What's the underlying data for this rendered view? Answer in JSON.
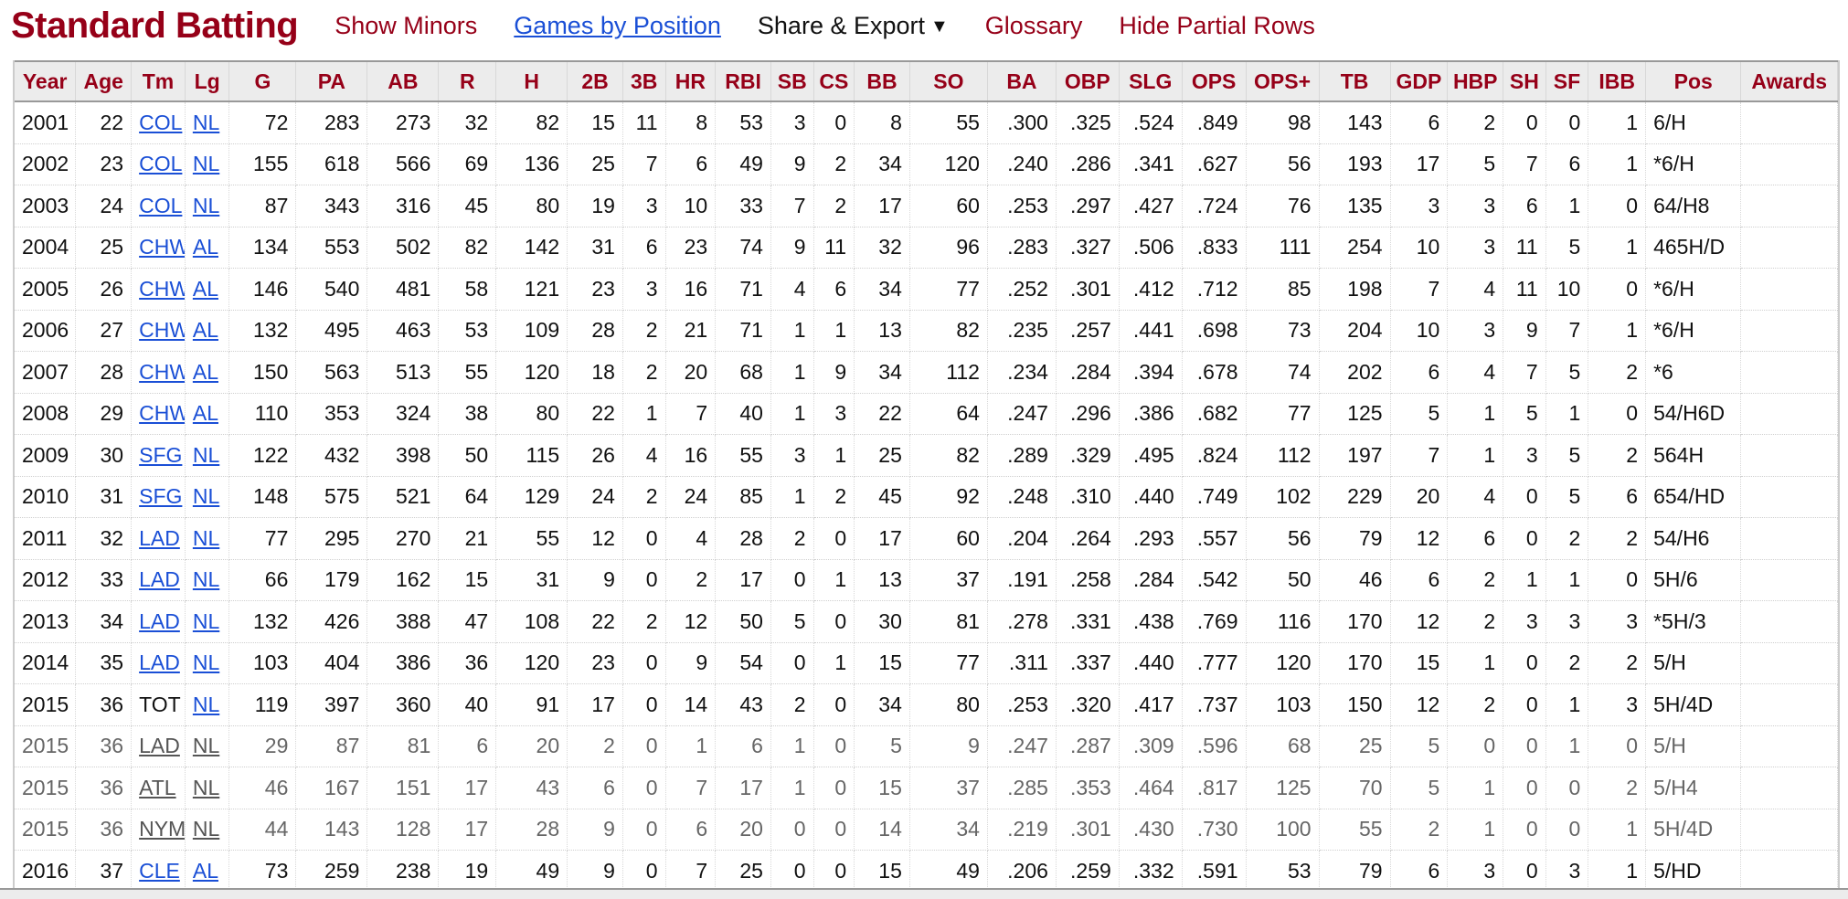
{
  "header": {
    "title": "Standard Batting",
    "links": {
      "show_minors": "Show Minors",
      "games_by_position": "Games by Position",
      "share_export": "Share & Export",
      "share_export_caret": "▼",
      "glossary": "Glossary",
      "hide_partial_rows": "Hide Partial Rows"
    }
  },
  "colors": {
    "title_red": "#960018",
    "link_blue": "#1a4fd6",
    "header_bg": "#ececec"
  },
  "table": {
    "columns": [
      "Year",
      "Age",
      "Tm",
      "Lg",
      "G",
      "PA",
      "AB",
      "R",
      "H",
      "2B",
      "3B",
      "HR",
      "RBI",
      "SB",
      "CS",
      "BB",
      "SO",
      "BA",
      "OBP",
      "SLG",
      "OPS",
      "OPS+",
      "TB",
      "GDP",
      "HBP",
      "SH",
      "SF",
      "IBB",
      "Pos",
      "Awards"
    ],
    "rows": [
      {
        "year": "2001",
        "age": "22",
        "tm": "COL",
        "lg": "NL",
        "g": "72",
        "pa": "283",
        "ab": "273",
        "r": "32",
        "h": "82",
        "b2": "15",
        "b3": "11",
        "hr": "8",
        "rbi": "53",
        "sb": "3",
        "cs": "0",
        "bb": "8",
        "so": "55",
        "ba": ".300",
        "obp": ".325",
        "slg": ".524",
        "ops": ".849",
        "opsplus": "98",
        "tb": "143",
        "gdp": "6",
        "hbp": "2",
        "sh": "0",
        "sf": "0",
        "ibb": "1",
        "pos": "6/H",
        "awards": ""
      },
      {
        "year": "2002",
        "age": "23",
        "tm": "COL",
        "lg": "NL",
        "g": "155",
        "pa": "618",
        "ab": "566",
        "r": "69",
        "h": "136",
        "b2": "25",
        "b3": "7",
        "hr": "6",
        "rbi": "49",
        "sb": "9",
        "cs": "2",
        "bb": "34",
        "so": "120",
        "ba": ".240",
        "obp": ".286",
        "slg": ".341",
        "ops": ".627",
        "opsplus": "56",
        "tb": "193",
        "gdp": "17",
        "hbp": "5",
        "sh": "7",
        "sf": "6",
        "ibb": "1",
        "pos": "*6/H",
        "awards": ""
      },
      {
        "year": "2003",
        "age": "24",
        "tm": "COL",
        "lg": "NL",
        "g": "87",
        "pa": "343",
        "ab": "316",
        "r": "45",
        "h": "80",
        "b2": "19",
        "b3": "3",
        "hr": "10",
        "rbi": "33",
        "sb": "7",
        "cs": "2",
        "bb": "17",
        "so": "60",
        "ba": ".253",
        "obp": ".297",
        "slg": ".427",
        "ops": ".724",
        "opsplus": "76",
        "tb": "135",
        "gdp": "3",
        "hbp": "3",
        "sh": "6",
        "sf": "1",
        "ibb": "0",
        "pos": "64/H8",
        "awards": ""
      },
      {
        "year": "2004",
        "age": "25",
        "tm": "CHW",
        "lg": "AL",
        "g": "134",
        "pa": "553",
        "ab": "502",
        "r": "82",
        "h": "142",
        "b2": "31",
        "b3": "6",
        "hr": "23",
        "rbi": "74",
        "sb": "9",
        "cs": "11",
        "bb": "32",
        "so": "96",
        "ba": ".283",
        "obp": ".327",
        "slg": ".506",
        "ops": ".833",
        "opsplus": "111",
        "tb": "254",
        "gdp": "10",
        "hbp": "3",
        "sh": "11",
        "sf": "5",
        "ibb": "1",
        "pos": "465H/D",
        "awards": ""
      },
      {
        "year": "2005",
        "age": "26",
        "tm": "CHW",
        "lg": "AL",
        "g": "146",
        "pa": "540",
        "ab": "481",
        "r": "58",
        "h": "121",
        "b2": "23",
        "b3": "3",
        "hr": "16",
        "rbi": "71",
        "sb": "4",
        "cs": "6",
        "bb": "34",
        "so": "77",
        "ba": ".252",
        "obp": ".301",
        "slg": ".412",
        "ops": ".712",
        "opsplus": "85",
        "tb": "198",
        "gdp": "7",
        "hbp": "4",
        "sh": "11",
        "sf": "10",
        "ibb": "0",
        "pos": "*6/H",
        "awards": ""
      },
      {
        "year": "2006",
        "age": "27",
        "tm": "CHW",
        "lg": "AL",
        "g": "132",
        "pa": "495",
        "ab": "463",
        "r": "53",
        "h": "109",
        "b2": "28",
        "b3": "2",
        "hr": "21",
        "rbi": "71",
        "sb": "1",
        "cs": "1",
        "bb": "13",
        "so": "82",
        "ba": ".235",
        "obp": ".257",
        "slg": ".441",
        "ops": ".698",
        "opsplus": "73",
        "tb": "204",
        "gdp": "10",
        "hbp": "3",
        "sh": "9",
        "sf": "7",
        "ibb": "1",
        "pos": "*6/H",
        "awards": ""
      },
      {
        "year": "2007",
        "age": "28",
        "tm": "CHW",
        "lg": "AL",
        "g": "150",
        "pa": "563",
        "ab": "513",
        "r": "55",
        "h": "120",
        "b2": "18",
        "b3": "2",
        "hr": "20",
        "rbi": "68",
        "sb": "1",
        "cs": "9",
        "bb": "34",
        "so": "112",
        "ba": ".234",
        "obp": ".284",
        "slg": ".394",
        "ops": ".678",
        "opsplus": "74",
        "tb": "202",
        "gdp": "6",
        "hbp": "4",
        "sh": "7",
        "sf": "5",
        "ibb": "2",
        "pos": "*6",
        "awards": ""
      },
      {
        "year": "2008",
        "age": "29",
        "tm": "CHW",
        "lg": "AL",
        "g": "110",
        "pa": "353",
        "ab": "324",
        "r": "38",
        "h": "80",
        "b2": "22",
        "b3": "1",
        "hr": "7",
        "rbi": "40",
        "sb": "1",
        "cs": "3",
        "bb": "22",
        "so": "64",
        "ba": ".247",
        "obp": ".296",
        "slg": ".386",
        "ops": ".682",
        "opsplus": "77",
        "tb": "125",
        "gdp": "5",
        "hbp": "1",
        "sh": "5",
        "sf": "1",
        "ibb": "0",
        "pos": "54/H6D",
        "awards": ""
      },
      {
        "year": "2009",
        "age": "30",
        "tm": "SFG",
        "lg": "NL",
        "g": "122",
        "pa": "432",
        "ab": "398",
        "r": "50",
        "h": "115",
        "b2": "26",
        "b3": "4",
        "hr": "16",
        "rbi": "55",
        "sb": "3",
        "cs": "1",
        "bb": "25",
        "so": "82",
        "ba": ".289",
        "obp": ".329",
        "slg": ".495",
        "ops": ".824",
        "opsplus": "112",
        "tb": "197",
        "gdp": "7",
        "hbp": "1",
        "sh": "3",
        "sf": "5",
        "ibb": "2",
        "pos": "564H",
        "awards": ""
      },
      {
        "year": "2010",
        "age": "31",
        "tm": "SFG",
        "lg": "NL",
        "g": "148",
        "pa": "575",
        "ab": "521",
        "r": "64",
        "h": "129",
        "b2": "24",
        "b3": "2",
        "hr": "24",
        "rbi": "85",
        "sb": "1",
        "cs": "2",
        "bb": "45",
        "so": "92",
        "ba": ".248",
        "obp": ".310",
        "slg": ".440",
        "ops": ".749",
        "opsplus": "102",
        "tb": "229",
        "gdp": "20",
        "hbp": "4",
        "sh": "0",
        "sf": "5",
        "ibb": "6",
        "pos": "654/HD",
        "awards": ""
      },
      {
        "year": "2011",
        "age": "32",
        "tm": "LAD",
        "lg": "NL",
        "g": "77",
        "pa": "295",
        "ab": "270",
        "r": "21",
        "h": "55",
        "b2": "12",
        "b3": "0",
        "hr": "4",
        "rbi": "28",
        "sb": "2",
        "cs": "0",
        "bb": "17",
        "so": "60",
        "ba": ".204",
        "obp": ".264",
        "slg": ".293",
        "ops": ".557",
        "opsplus": "56",
        "tb": "79",
        "gdp": "12",
        "hbp": "6",
        "sh": "0",
        "sf": "2",
        "ibb": "2",
        "pos": "54/H6",
        "awards": ""
      },
      {
        "year": "2012",
        "age": "33",
        "tm": "LAD",
        "lg": "NL",
        "g": "66",
        "pa": "179",
        "ab": "162",
        "r": "15",
        "h": "31",
        "b2": "9",
        "b3": "0",
        "hr": "2",
        "rbi": "17",
        "sb": "0",
        "cs": "1",
        "bb": "13",
        "so": "37",
        "ba": ".191",
        "obp": ".258",
        "slg": ".284",
        "ops": ".542",
        "opsplus": "50",
        "tb": "46",
        "gdp": "6",
        "hbp": "2",
        "sh": "1",
        "sf": "1",
        "ibb": "0",
        "pos": "5H/6",
        "awards": ""
      },
      {
        "year": "2013",
        "age": "34",
        "tm": "LAD",
        "lg": "NL",
        "g": "132",
        "pa": "426",
        "ab": "388",
        "r": "47",
        "h": "108",
        "b2": "22",
        "b3": "2",
        "hr": "12",
        "rbi": "50",
        "sb": "5",
        "cs": "0",
        "bb": "30",
        "so": "81",
        "ba": ".278",
        "obp": ".331",
        "slg": ".438",
        "ops": ".769",
        "opsplus": "116",
        "tb": "170",
        "gdp": "12",
        "hbp": "2",
        "sh": "3",
        "sf": "3",
        "ibb": "3",
        "pos": "*5H/3",
        "awards": ""
      },
      {
        "year": "2014",
        "age": "35",
        "tm": "LAD",
        "lg": "NL",
        "g": "103",
        "pa": "404",
        "ab": "386",
        "r": "36",
        "h": "120",
        "b2": "23",
        "b3": "0",
        "hr": "9",
        "rbi": "54",
        "sb": "0",
        "cs": "1",
        "bb": "15",
        "so": "77",
        "ba": ".311",
        "obp": ".337",
        "slg": ".440",
        "ops": ".777",
        "opsplus": "120",
        "tb": "170",
        "gdp": "15",
        "hbp": "1",
        "sh": "0",
        "sf": "2",
        "ibb": "2",
        "pos": "5/H",
        "awards": ""
      },
      {
        "year": "2015",
        "age": "36",
        "tm": "TOT",
        "lg": "NL",
        "g": "119",
        "pa": "397",
        "ab": "360",
        "r": "40",
        "h": "91",
        "b2": "17",
        "b3": "0",
        "hr": "14",
        "rbi": "43",
        "sb": "2",
        "cs": "0",
        "bb": "34",
        "so": "80",
        "ba": ".253",
        "obp": ".320",
        "slg": ".417",
        "ops": ".737",
        "opsplus": "103",
        "tb": "150",
        "gdp": "12",
        "hbp": "2",
        "sh": "0",
        "sf": "1",
        "ibb": "3",
        "pos": "5H/4D",
        "awards": ""
      },
      {
        "year": "2015",
        "age": "36",
        "tm": "LAD",
        "lg": "NL",
        "g": "29",
        "pa": "87",
        "ab": "81",
        "r": "6",
        "h": "20",
        "b2": "2",
        "b3": "0",
        "hr": "1",
        "rbi": "6",
        "sb": "1",
        "cs": "0",
        "bb": "5",
        "so": "9",
        "ba": ".247",
        "obp": ".287",
        "slg": ".309",
        "ops": ".596",
        "opsplus": "68",
        "tb": "25",
        "gdp": "5",
        "hbp": "0",
        "sh": "0",
        "sf": "1",
        "ibb": "0",
        "pos": "5/H",
        "awards": ""
      },
      {
        "year": "2015",
        "age": "36",
        "tm": "ATL",
        "lg": "NL",
        "g": "46",
        "pa": "167",
        "ab": "151",
        "r": "17",
        "h": "43",
        "b2": "6",
        "b3": "0",
        "hr": "7",
        "rbi": "17",
        "sb": "1",
        "cs": "0",
        "bb": "15",
        "so": "37",
        "ba": ".285",
        "obp": ".353",
        "slg": ".464",
        "ops": ".817",
        "opsplus": "125",
        "tb": "70",
        "gdp": "5",
        "hbp": "1",
        "sh": "0",
        "sf": "0",
        "ibb": "2",
        "pos": "5/H4",
        "awards": ""
      },
      {
        "year": "2015",
        "age": "36",
        "tm": "NYM",
        "lg": "NL",
        "g": "44",
        "pa": "143",
        "ab": "128",
        "r": "17",
        "h": "28",
        "b2": "9",
        "b3": "0",
        "hr": "6",
        "rbi": "20",
        "sb": "0",
        "cs": "0",
        "bb": "14",
        "so": "34",
        "ba": ".219",
        "obp": ".301",
        "slg": ".430",
        "ops": ".730",
        "opsplus": "100",
        "tb": "55",
        "gdp": "2",
        "hbp": "1",
        "sh": "0",
        "sf": "0",
        "ibb": "1",
        "pos": "5H/4D",
        "awards": ""
      },
      {
        "year": "2016",
        "age": "37",
        "tm": "CLE",
        "lg": "AL",
        "g": "73",
        "pa": "259",
        "ab": "238",
        "r": "19",
        "h": "49",
        "b2": "9",
        "b3": "0",
        "hr": "7",
        "rbi": "25",
        "sb": "0",
        "cs": "0",
        "bb": "15",
        "so": "49",
        "ba": ".206",
        "obp": ".259",
        "slg": ".332",
        "ops": ".591",
        "opsplus": "53",
        "tb": "79",
        "gdp": "6",
        "hbp": "3",
        "sh": "0",
        "sf": "3",
        "ibb": "1",
        "pos": "5/HD",
        "awards": ""
      }
    ]
  }
}
